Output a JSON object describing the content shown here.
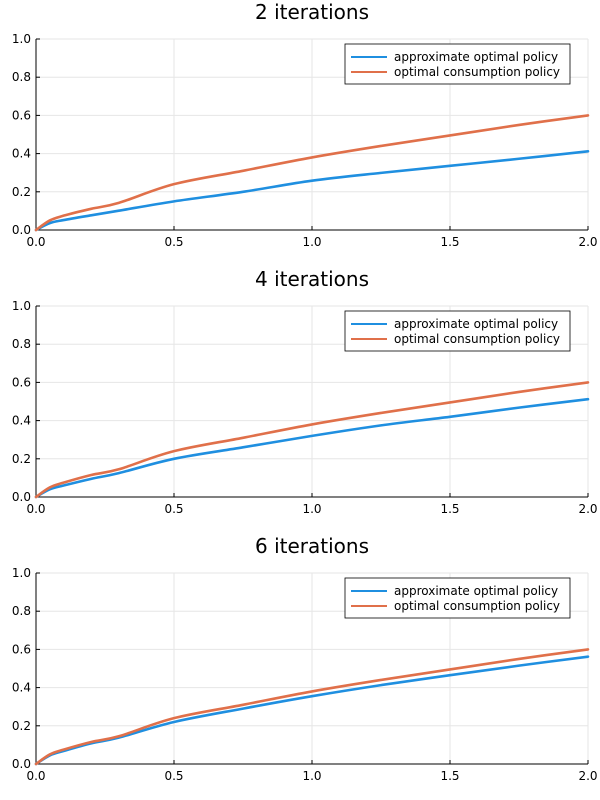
{
  "chart_data": [
    {
      "type": "line",
      "title": "2 iterations",
      "xlabel": "",
      "ylabel": "",
      "xlim": [
        0,
        2
      ],
      "ylim": [
        0,
        1
      ],
      "xticks": [
        "0.0",
        "0.5",
        "1.0",
        "1.5",
        "2.0"
      ],
      "yticks": [
        "0.0",
        "0.2",
        "0.4",
        "0.6",
        "0.8",
        "1.0"
      ],
      "grid": true,
      "legend_position": "top-right",
      "series": [
        {
          "name": "approximate optimal policy",
          "color": "#1f8fe0",
          "x": [
            0,
            0.05,
            0.1,
            0.2,
            0.3,
            0.5,
            0.75,
            1.0,
            1.25,
            1.5,
            1.75,
            2.0
          ],
          "y": [
            0,
            0.036,
            0.052,
            0.077,
            0.101,
            0.15,
            0.2,
            0.258,
            0.299,
            0.336,
            0.373,
            0.412
          ]
        },
        {
          "name": "optimal consumption policy",
          "color": "#e0704a",
          "x": [
            0,
            0.05,
            0.1,
            0.2,
            0.3,
            0.5,
            0.75,
            1.0,
            1.25,
            1.5,
            1.75,
            2.0
          ],
          "y": [
            0,
            0.05,
            0.075,
            0.111,
            0.142,
            0.24,
            0.31,
            0.38,
            0.44,
            0.495,
            0.55,
            0.6
          ]
        }
      ]
    },
    {
      "type": "line",
      "title": "4 iterations",
      "xlabel": "",
      "ylabel": "",
      "xlim": [
        0,
        2
      ],
      "ylim": [
        0,
        1
      ],
      "xticks": [
        "0.0",
        "0.5",
        "1.0",
        "1.5",
        "2.0"
      ],
      "yticks": [
        "0.0",
        "0.2",
        "0.4",
        "0.6",
        "0.8",
        "1.0"
      ],
      "grid": true,
      "legend_position": "top-right",
      "series": [
        {
          "name": "approximate optimal policy",
          "color": "#1f8fe0",
          "x": [
            0,
            0.05,
            0.1,
            0.2,
            0.3,
            0.5,
            0.75,
            1.0,
            1.25,
            1.5,
            1.75,
            2.0
          ],
          "y": [
            0,
            0.04,
            0.06,
            0.095,
            0.125,
            0.2,
            0.26,
            0.32,
            0.375,
            0.42,
            0.468,
            0.512
          ]
        },
        {
          "name": "optimal consumption policy",
          "color": "#e0704a",
          "x": [
            0,
            0.05,
            0.1,
            0.2,
            0.3,
            0.5,
            0.75,
            1.0,
            1.25,
            1.5,
            1.75,
            2.0
          ],
          "y": [
            0,
            0.05,
            0.075,
            0.115,
            0.145,
            0.24,
            0.31,
            0.38,
            0.44,
            0.495,
            0.55,
            0.6
          ]
        }
      ]
    },
    {
      "type": "line",
      "title": "6 iterations",
      "xlabel": "",
      "ylabel": "",
      "xlim": [
        0,
        2
      ],
      "ylim": [
        0,
        1
      ],
      "xticks": [
        "0.0",
        "0.5",
        "1.0",
        "1.5",
        "2.0"
      ],
      "yticks": [
        "0.0",
        "0.2",
        "0.4",
        "0.6",
        "0.8",
        "1.0"
      ],
      "grid": true,
      "legend_position": "top-right",
      "series": [
        {
          "name": "approximate optimal policy",
          "color": "#1f8fe0",
          "x": [
            0,
            0.05,
            0.1,
            0.2,
            0.3,
            0.5,
            0.75,
            1.0,
            1.25,
            1.5,
            1.75,
            2.0
          ],
          "y": [
            0,
            0.045,
            0.068,
            0.108,
            0.138,
            0.22,
            0.29,
            0.355,
            0.413,
            0.465,
            0.515,
            0.562
          ]
        },
        {
          "name": "optimal consumption policy",
          "color": "#e0704a",
          "x": [
            0,
            0.05,
            0.1,
            0.2,
            0.3,
            0.5,
            0.75,
            1.0,
            1.25,
            1.5,
            1.75,
            2.0
          ],
          "y": [
            0,
            0.05,
            0.075,
            0.115,
            0.145,
            0.24,
            0.31,
            0.38,
            0.44,
            0.495,
            0.55,
            0.6
          ]
        }
      ]
    }
  ]
}
